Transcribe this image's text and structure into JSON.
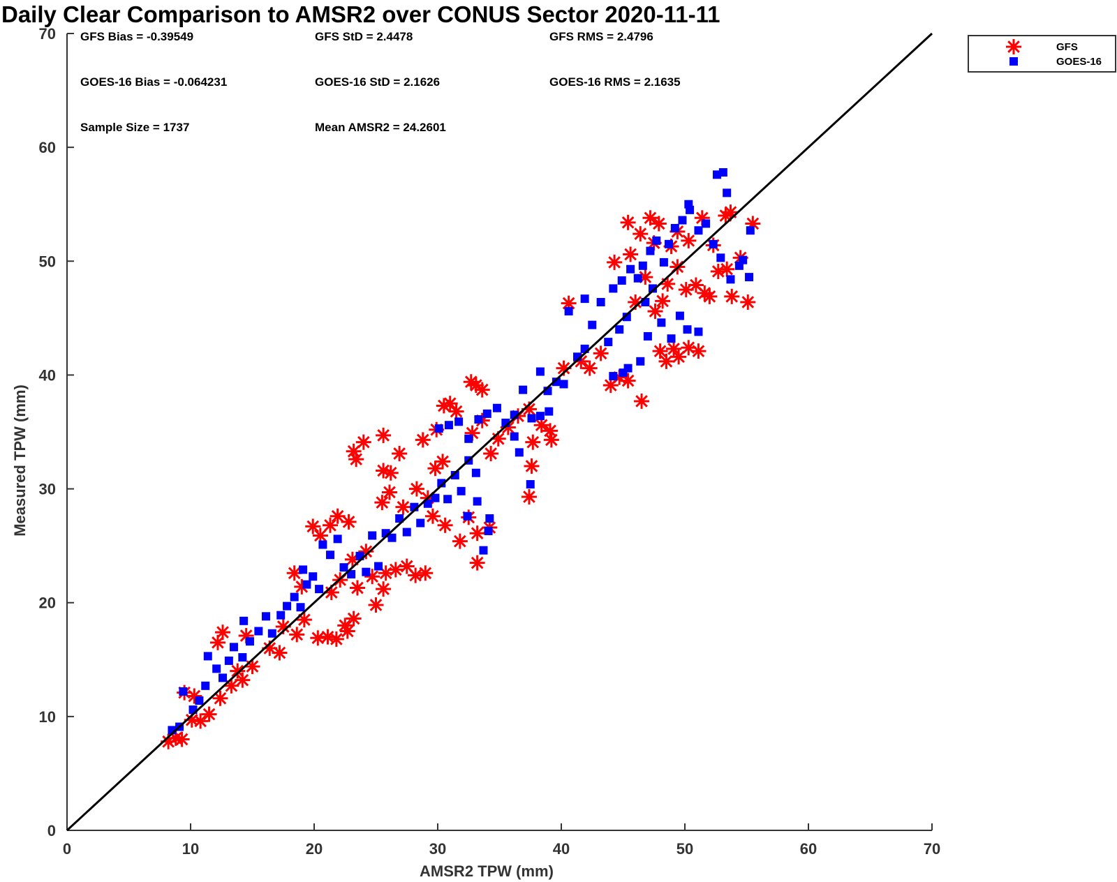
{
  "chart_data": {
    "type": "scatter",
    "title": "Daily Clear Comparison to AMSR2 over CONUS Sector 2020-11-11",
    "xlabel": "AMSR2 TPW (mm)",
    "ylabel": "Measured TPW (mm)",
    "xlim": [
      0,
      70
    ],
    "ylim": [
      0,
      70
    ],
    "xticks": [
      0,
      10,
      20,
      30,
      40,
      50,
      60,
      70
    ],
    "yticks": [
      0,
      10,
      20,
      30,
      40,
      50,
      60,
      70
    ],
    "grid": false,
    "legend_position": "outside top-right",
    "reference_line": {
      "name": "1:1 line",
      "from": [
        0,
        0
      ],
      "to": [
        70,
        70
      ],
      "color": "#000000"
    },
    "stats": [
      {
        "label": "GFS Bias = -0.39549"
      },
      {
        "label": "GFS StD = 2.4478"
      },
      {
        "label": "GFS RMS = 2.4796"
      },
      {
        "label": "GOES-16 Bias = -0.064231"
      },
      {
        "label": "GOES-16 StD = 2.1626"
      },
      {
        "label": "GOES-16 RMS = 2.1635"
      },
      {
        "label": "Sample Size = 1737"
      },
      {
        "label": "Mean AMSR2 = 24.2601"
      }
    ],
    "series": [
      {
        "name": "GFS",
        "marker": "asterisk",
        "color": "#ff0000",
        "points": [
          [
            8.2,
            7.8
          ],
          [
            8.8,
            8.1
          ],
          [
            9.3,
            8.0
          ],
          [
            10.1,
            9.7
          ],
          [
            10.8,
            9.6
          ],
          [
            11.5,
            10.2
          ],
          [
            9.5,
            12.1
          ],
          [
            10.3,
            11.8
          ],
          [
            12.4,
            11.6
          ],
          [
            13.3,
            12.7
          ],
          [
            12.2,
            16.5
          ],
          [
            12.6,
            17.4
          ],
          [
            13.8,
            14.0
          ],
          [
            14.2,
            13.2
          ],
          [
            15.0,
            14.4
          ],
          [
            14.5,
            17.1
          ],
          [
            16.4,
            16.0
          ],
          [
            17.2,
            15.6
          ],
          [
            17.5,
            17.9
          ],
          [
            18.6,
            17.2
          ],
          [
            19.2,
            18.5
          ],
          [
            18.4,
            22.6
          ],
          [
            19.0,
            21.4
          ],
          [
            20.3,
            16.9
          ],
          [
            21.1,
            17.0
          ],
          [
            21.8,
            16.8
          ],
          [
            22.5,
            18.0
          ],
          [
            23.2,
            18.6
          ],
          [
            22.7,
            17.5
          ],
          [
            19.9,
            26.7
          ],
          [
            20.5,
            25.9
          ],
          [
            21.3,
            26.8
          ],
          [
            21.9,
            27.6
          ],
          [
            22.8,
            27.1
          ],
          [
            21.4,
            20.9
          ],
          [
            22.1,
            22.0
          ],
          [
            23.5,
            21.3
          ],
          [
            23.1,
            23.8
          ],
          [
            24.2,
            24.5
          ],
          [
            25.0,
            19.8
          ],
          [
            25.6,
            21.2
          ],
          [
            24.7,
            22.3
          ],
          [
            25.8,
            22.6
          ],
          [
            26.6,
            22.9
          ],
          [
            27.5,
            23.2
          ],
          [
            28.2,
            22.4
          ],
          [
            29.0,
            22.6
          ],
          [
            23.2,
            33.3
          ],
          [
            23.4,
            32.6
          ],
          [
            24.0,
            34.1
          ],
          [
            25.6,
            34.7
          ],
          [
            25.6,
            31.6
          ],
          [
            26.2,
            31.4
          ],
          [
            26.9,
            33.1
          ],
          [
            25.5,
            28.8
          ],
          [
            26.1,
            29.7
          ],
          [
            27.2,
            28.4
          ],
          [
            28.3,
            30.0
          ],
          [
            29.2,
            29.2
          ],
          [
            29.8,
            31.8
          ],
          [
            30.4,
            32.4
          ],
          [
            28.8,
            34.3
          ],
          [
            29.9,
            35.2
          ],
          [
            30.5,
            37.3
          ],
          [
            31.0,
            37.5
          ],
          [
            31.5,
            36.8
          ],
          [
            32.7,
            39.4
          ],
          [
            33.1,
            39.1
          ],
          [
            33.6,
            38.7
          ],
          [
            32.8,
            34.9
          ],
          [
            33.6,
            36.0
          ],
          [
            34.3,
            33.1
          ],
          [
            34.9,
            34.4
          ],
          [
            35.7,
            35.4
          ],
          [
            36.5,
            36.4
          ],
          [
            37.4,
            37.0
          ],
          [
            37.7,
            34.1
          ],
          [
            38.4,
            35.6
          ],
          [
            39.1,
            35.1
          ],
          [
            39.2,
            34.3
          ],
          [
            37.4,
            29.3
          ],
          [
            37.6,
            32.0
          ],
          [
            32.5,
            27.5
          ],
          [
            33.2,
            26.1
          ],
          [
            34.2,
            26.6
          ],
          [
            33.2,
            23.5
          ],
          [
            31.8,
            25.4
          ],
          [
            30.6,
            26.8
          ],
          [
            29.6,
            27.6
          ],
          [
            40.2,
            40.6
          ],
          [
            40.6,
            46.3
          ],
          [
            41.6,
            41.2
          ],
          [
            42.3,
            40.6
          ],
          [
            43.2,
            41.9
          ],
          [
            44.0,
            39.1
          ],
          [
            44.7,
            39.8
          ],
          [
            45.4,
            39.5
          ],
          [
            46.5,
            37.7
          ],
          [
            44.3,
            49.9
          ],
          [
            45.4,
            53.4
          ],
          [
            46.0,
            46.4
          ],
          [
            46.8,
            48.6
          ],
          [
            47.2,
            53.8
          ],
          [
            47.6,
            45.6
          ],
          [
            48.2,
            46.5
          ],
          [
            48.0,
            42.1
          ],
          [
            48.5,
            41.2
          ],
          [
            49.1,
            42.3
          ],
          [
            49.5,
            41.6
          ],
          [
            50.3,
            42.4
          ],
          [
            51.1,
            42.1
          ],
          [
            48.6,
            48.0
          ],
          [
            49.4,
            49.5
          ],
          [
            50.1,
            47.5
          ],
          [
            50.9,
            47.9
          ],
          [
            51.6,
            47.2
          ],
          [
            52.0,
            46.9
          ],
          [
            48.9,
            51.3
          ],
          [
            49.4,
            52.6
          ],
          [
            50.3,
            51.8
          ],
          [
            51.4,
            53.8
          ],
          [
            52.3,
            51.4
          ],
          [
            52.7,
            49.1
          ],
          [
            53.3,
            54.0
          ],
          [
            53.7,
            54.3
          ],
          [
            53.8,
            46.9
          ],
          [
            54.5,
            50.3
          ],
          [
            55.1,
            46.4
          ],
          [
            55.5,
            53.3
          ],
          [
            53.4,
            49.3
          ],
          [
            45.6,
            50.6
          ],
          [
            46.4,
            52.4
          ],
          [
            47.5,
            51.6
          ],
          [
            47.9,
            53.3
          ]
        ]
      },
      {
        "name": "GOES-16",
        "marker": "square",
        "color": "#0000ff",
        "points": [
          [
            8.5,
            8.8
          ],
          [
            9.1,
            9.1
          ],
          [
            9.4,
            12.2
          ],
          [
            10.2,
            10.6
          ],
          [
            10.7,
            11.4
          ],
          [
            11.2,
            12.7
          ],
          [
            11.4,
            15.3
          ],
          [
            12.1,
            14.2
          ],
          [
            12.6,
            13.4
          ],
          [
            13.1,
            14.9
          ],
          [
            13.5,
            16.1
          ],
          [
            14.2,
            15.2
          ],
          [
            14.8,
            16.6
          ],
          [
            14.3,
            18.4
          ],
          [
            15.5,
            17.5
          ],
          [
            16.1,
            18.8
          ],
          [
            16.6,
            17.3
          ],
          [
            17.3,
            18.9
          ],
          [
            17.8,
            19.7
          ],
          [
            18.4,
            20.5
          ],
          [
            18.9,
            19.6
          ],
          [
            19.4,
            21.6
          ],
          [
            19.9,
            22.3
          ],
          [
            20.4,
            21.2
          ],
          [
            19.1,
            22.9
          ],
          [
            20.7,
            25.1
          ],
          [
            21.3,
            24.2
          ],
          [
            21.9,
            25.6
          ],
          [
            22.4,
            23.1
          ],
          [
            23.0,
            22.5
          ],
          [
            23.7,
            24.1
          ],
          [
            24.2,
            22.7
          ],
          [
            24.7,
            25.9
          ],
          [
            25.2,
            23.2
          ],
          [
            25.8,
            26.1
          ],
          [
            26.3,
            25.7
          ],
          [
            26.9,
            27.4
          ],
          [
            27.5,
            26.2
          ],
          [
            28.1,
            28.4
          ],
          [
            28.6,
            27.0
          ],
          [
            29.2,
            28.7
          ],
          [
            29.8,
            29.2
          ],
          [
            30.3,
            30.5
          ],
          [
            30.8,
            29.1
          ],
          [
            31.4,
            31.2
          ],
          [
            31.9,
            29.8
          ],
          [
            32.5,
            32.5
          ],
          [
            33.1,
            31.4
          ],
          [
            32.4,
            27.6
          ],
          [
            33.2,
            28.9
          ],
          [
            34.1,
            26.3
          ],
          [
            33.7,
            24.6
          ],
          [
            34.2,
            27.4
          ],
          [
            30.1,
            35.3
          ],
          [
            30.9,
            35.6
          ],
          [
            31.7,
            35.9
          ],
          [
            32.5,
            34.4
          ],
          [
            33.3,
            36.1
          ],
          [
            34.0,
            36.6
          ],
          [
            34.8,
            37.1
          ],
          [
            35.5,
            35.8
          ],
          [
            36.2,
            36.5
          ],
          [
            36.9,
            38.7
          ],
          [
            37.6,
            36.2
          ],
          [
            38.3,
            36.4
          ],
          [
            38.9,
            38.6
          ],
          [
            39.6,
            39.4
          ],
          [
            38.3,
            40.3
          ],
          [
            40.6,
            45.6
          ],
          [
            41.3,
            41.6
          ],
          [
            41.9,
            42.3
          ],
          [
            42.5,
            44.4
          ],
          [
            43.2,
            46.4
          ],
          [
            43.8,
            42.9
          ],
          [
            44.2,
            39.9
          ],
          [
            45.0,
            40.2
          ],
          [
            45.4,
            40.6
          ],
          [
            44.7,
            44.0
          ],
          [
            45.3,
            45.1
          ],
          [
            44.2,
            47.6
          ],
          [
            44.9,
            48.3
          ],
          [
            45.6,
            49.3
          ],
          [
            46.2,
            48.5
          ],
          [
            46.8,
            46.4
          ],
          [
            47.4,
            47.6
          ],
          [
            46.6,
            49.6
          ],
          [
            47.2,
            50.9
          ],
          [
            47.7,
            51.8
          ],
          [
            48.3,
            49.9
          ],
          [
            48.7,
            51.5
          ],
          [
            49.2,
            52.9
          ],
          [
            49.8,
            53.6
          ],
          [
            48.1,
            44.6
          ],
          [
            48.9,
            43.2
          ],
          [
            49.6,
            45.2
          ],
          [
            50.2,
            44.0
          ],
          [
            51.1,
            43.8
          ],
          [
            47.0,
            43.4
          ],
          [
            46.4,
            41.2
          ],
          [
            50.4,
            54.5
          ],
          [
            50.3,
            55.0
          ],
          [
            51.1,
            52.7
          ],
          [
            51.7,
            53.3
          ],
          [
            52.3,
            51.5
          ],
          [
            52.6,
            57.6
          ],
          [
            53.1,
            57.8
          ],
          [
            53.4,
            56.0
          ],
          [
            52.9,
            50.3
          ],
          [
            53.7,
            48.4
          ],
          [
            54.4,
            49.6
          ],
          [
            54.7,
            50.1
          ],
          [
            55.2,
            48.6
          ],
          [
            55.3,
            52.7
          ],
          [
            41.9,
            46.7
          ],
          [
            40.2,
            39.2
          ],
          [
            36.6,
            33.2
          ],
          [
            37.5,
            30.4
          ],
          [
            36.2,
            34.6
          ],
          [
            39.0,
            36.8
          ]
        ]
      }
    ]
  }
}
